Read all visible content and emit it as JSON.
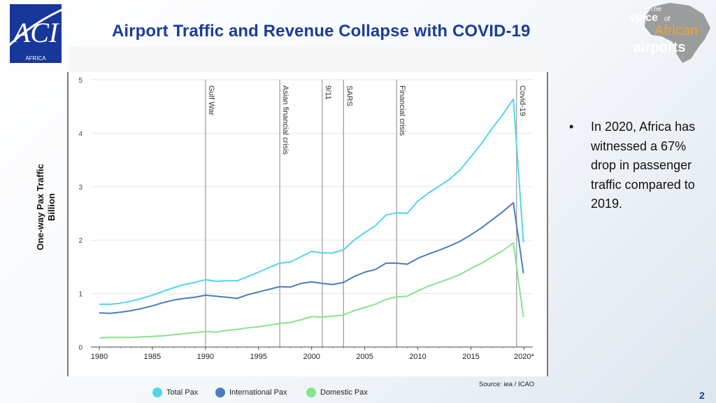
{
  "title": "Airport Traffic and Revenue Collapse with COVID-19",
  "logos": {
    "aci": {
      "text": "ACI",
      "subtext": "AFRICA"
    },
    "voice": {
      "the": "The",
      "voice": "voice",
      "of": "of",
      "african": "African",
      "airports": "airports"
    }
  },
  "bullet": {
    "text": "In 2020, Africa has witnessed a 67% drop in passenger traffic compared to 2019."
  },
  "source": "Source: iea / ICAO",
  "page_number": "2",
  "colors": {
    "total": "#54d4ec",
    "international": "#4a7cc4",
    "domestic": "#86e48e",
    "title": "#1b3d99"
  },
  "chart_data": {
    "type": "line",
    "title": "",
    "ylabel_line1": "One-way Pax Traffic",
    "ylabel_line2": "Billion",
    "xlabel": "",
    "ylim": [
      0,
      5
    ],
    "xlim": [
      1980,
      2020.5
    ],
    "yticks": [
      {
        "value": 0,
        "label": "0"
      },
      {
        "value": 1,
        "label": "1"
      },
      {
        "value": 2,
        "label": "2"
      },
      {
        "value": 3,
        "label": "3"
      },
      {
        "value": 4,
        "label": "4"
      },
      {
        "value": 5,
        "label": "5"
      }
    ],
    "xticks": [
      {
        "value": 1980,
        "label": "1980"
      },
      {
        "value": 1985,
        "label": "1985"
      },
      {
        "value": 1990,
        "label": "1990"
      },
      {
        "value": 1995,
        "label": "1995"
      },
      {
        "value": 2000,
        "label": "2000"
      },
      {
        "value": 2005,
        "label": "2005"
      },
      {
        "value": 2010,
        "label": "2010"
      },
      {
        "value": 2015,
        "label": "2015"
      },
      {
        "value": 2020,
        "label": "2020*"
      }
    ],
    "events": [
      {
        "year": 1990,
        "label": "Gulf War"
      },
      {
        "year": 1997,
        "label": "Asian financial crisis"
      },
      {
        "year": 2001,
        "label": "9/11"
      },
      {
        "year": 2003,
        "label": "SARS"
      },
      {
        "year": 2008,
        "label": "Financial crisis"
      },
      {
        "year": 2019.3,
        "label": "Covid-19"
      }
    ],
    "x": [
      1980,
      1981,
      1982,
      1983,
      1984,
      1985,
      1986,
      1987,
      1988,
      1989,
      1990,
      1991,
      1992,
      1993,
      1994,
      1995,
      1996,
      1997,
      1998,
      1999,
      2000,
      2001,
      2002,
      2003,
      2004,
      2005,
      2006,
      2007,
      2008,
      2009,
      2010,
      2011,
      2012,
      2013,
      2014,
      2015,
      2016,
      2017,
      2018,
      2019,
      2020
    ],
    "series": [
      {
        "name": "Total Pax",
        "key": "total",
        "values": [
          0.8,
          0.8,
          0.82,
          0.86,
          0.91,
          0.97,
          1.04,
          1.11,
          1.17,
          1.21,
          1.26,
          1.23,
          1.24,
          1.24,
          1.32,
          1.4,
          1.49,
          1.57,
          1.59,
          1.69,
          1.79,
          1.76,
          1.76,
          1.82,
          2.0,
          2.14,
          2.27,
          2.47,
          2.51,
          2.5,
          2.73,
          2.88,
          3.01,
          3.14,
          3.32,
          3.56,
          3.81,
          4.09,
          4.35,
          4.64,
          1.96
        ]
      },
      {
        "name": "International  Pax",
        "key": "international",
        "values": [
          0.64,
          0.63,
          0.65,
          0.68,
          0.72,
          0.77,
          0.83,
          0.88,
          0.91,
          0.93,
          0.97,
          0.95,
          0.93,
          0.91,
          0.98,
          1.03,
          1.08,
          1.13,
          1.12,
          1.19,
          1.22,
          1.19,
          1.17,
          1.21,
          1.32,
          1.4,
          1.45,
          1.57,
          1.57,
          1.55,
          1.66,
          1.74,
          1.81,
          1.89,
          1.98,
          2.1,
          2.23,
          2.38,
          2.53,
          2.7,
          1.38
        ]
      },
      {
        "name": "Domestic Pax",
        "key": "domestic",
        "values": [
          0.17,
          0.18,
          0.18,
          0.18,
          0.19,
          0.2,
          0.21,
          0.23,
          0.25,
          0.27,
          0.29,
          0.28,
          0.31,
          0.33,
          0.36,
          0.38,
          0.41,
          0.44,
          0.46,
          0.51,
          0.57,
          0.56,
          0.58,
          0.6,
          0.68,
          0.74,
          0.8,
          0.89,
          0.94,
          0.95,
          1.05,
          1.14,
          1.21,
          1.28,
          1.36,
          1.47,
          1.57,
          1.69,
          1.8,
          1.95,
          0.56
        ]
      }
    ],
    "legend_position": "bottom"
  }
}
